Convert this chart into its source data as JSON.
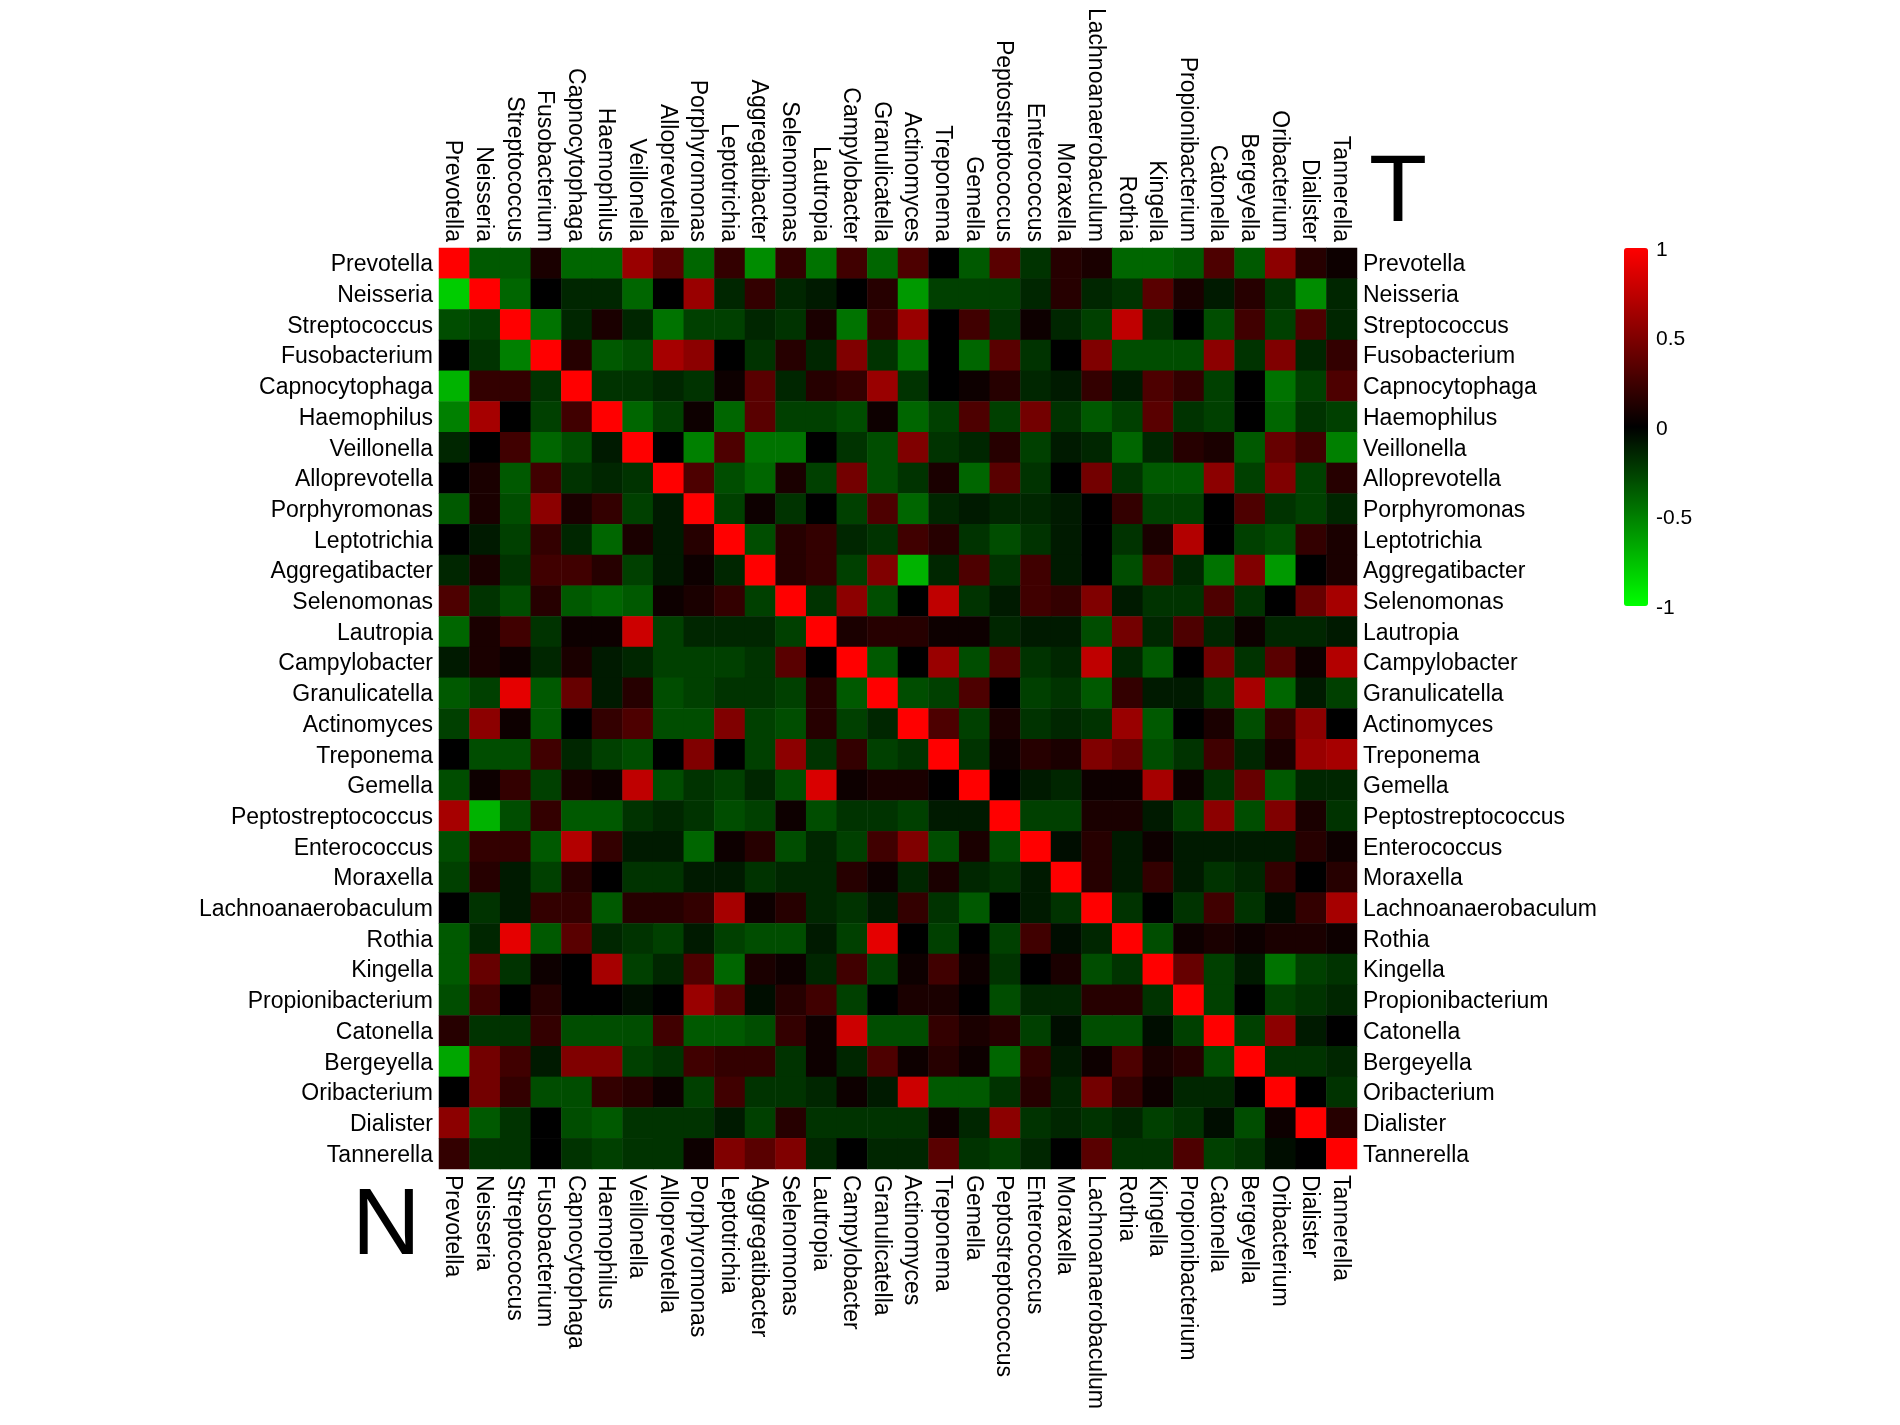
{
  "chart_data": {
    "type": "heatmap",
    "categories": [
      "Prevotella",
      "Neisseria",
      "Streptococcus",
      "Fusobacterium",
      "Capnocytophaga",
      "Haemophilus",
      "Veillonella",
      "Alloprevotella",
      "Porphyromonas",
      "Leptotrichia",
      "Aggregatibacter",
      "Selenomonas",
      "Lautropia",
      "Campylobacter",
      "Granulicatella",
      "Actinomyces",
      "Treponema",
      "Gemella",
      "Peptostreptococcus",
      "Enterococcus",
      "Moraxella",
      "Lachnoanaerobaculum",
      "Rothia",
      "Kingella",
      "Propionibacterium",
      "Catonella",
      "Bergeyella",
      "Oribacterium",
      "Dialister",
      "Tannerella"
    ],
    "y_categories": [
      "Prevotella",
      "Neisseria",
      "Streptococcus",
      "Fusobacterium",
      "Capnocytophaga",
      "Haemophilus",
      "Veillonella",
      "Alloprevotella",
      "Porphyromonas",
      "Leptotrichia",
      "Aggregatibacter",
      "Selenomonas",
      "Lautropia",
      "Campylobacter",
      "Granulicatella",
      "Actinomyces",
      "Treponema",
      "Gemella",
      "Peptostreptococcus",
      "Enterococcus",
      "Moraxella",
      "Lachnoanaerobaculum",
      "Rothia",
      "Kingella",
      "Propionibacterium",
      "Catonella",
      "Bergeyella",
      "Oribacterium",
      "Dialister",
      "Tannerella"
    ],
    "y2_categories": [
      "Prevotella",
      "Neisseria",
      "Streptococcus",
      "Fusobacterium",
      "Capnocytophaga",
      "Haemophilus",
      "Veillonella",
      "Alloprevotella",
      "Porphyromonas",
      "Leptotrichia",
      "Aggregatibacter",
      "Selenomonas",
      "Lautropia",
      "Campylobacter",
      "Granulicatella",
      "Actinomyces",
      "Treponema",
      "Gemella",
      "Peptostreptococcus",
      "Enterococcus",
      "Moraxella",
      "Lachnoanaerobaculum",
      "Rothia",
      "Kingella",
      "Propionibacterium",
      "Catonella",
      "Bergeyella",
      "Oribacterium",
      "Dialister",
      "Tannerella"
    ],
    "cells": [
      [
        1,
        -0.35,
        -0.35,
        0.1,
        -0.4,
        -0.4,
        0.6,
        0.35,
        -0.4,
        0.2,
        -0.55,
        0.2,
        -0.45,
        0.25,
        -0.4,
        0.3,
        0,
        -0.35,
        0.35,
        -0.2,
        0.15,
        0.1,
        -0.4,
        -0.4,
        -0.35,
        0.3,
        -0.35,
        0.55,
        0.15,
        0.05
      ],
      [
        -0.8,
        1,
        -0.4,
        0,
        -0.15,
        -0.15,
        -0.4,
        0,
        0.6,
        -0.15,
        0.2,
        -0.15,
        -0.1,
        0,
        0.15,
        -0.6,
        -0.25,
        -0.25,
        -0.25,
        -0.15,
        0.15,
        -0.15,
        -0.2,
        0.35,
        0.1,
        -0.1,
        0.15,
        -0.2,
        -0.55,
        -0.15
      ],
      [
        -0.3,
        -0.25,
        1,
        -0.45,
        -0.15,
        0.1,
        -0.15,
        -0.45,
        -0.25,
        -0.25,
        -0.15,
        -0.2,
        0.1,
        -0.45,
        0.2,
        0.6,
        0,
        0.25,
        -0.2,
        0.05,
        -0.15,
        -0.25,
        0.75,
        -0.2,
        0,
        -0.3,
        0.25,
        -0.25,
        0.3,
        -0.15
      ],
      [
        0,
        -0.2,
        -0.5,
        1,
        0.15,
        -0.35,
        -0.3,
        0.65,
        0.55,
        0,
        -0.2,
        0.15,
        -0.15,
        0.5,
        -0.2,
        -0.45,
        0,
        -0.4,
        0.35,
        -0.2,
        0,
        0.5,
        -0.3,
        -0.3,
        -0.3,
        0.55,
        -0.2,
        0.5,
        -0.15,
        0.2
      ],
      [
        -0.7,
        0.2,
        0.2,
        -0.2,
        1,
        -0.2,
        -0.2,
        -0.15,
        -0.2,
        0.05,
        0.35,
        -0.15,
        0.15,
        0.2,
        0.6,
        -0.2,
        0,
        0.05,
        0.15,
        -0.15,
        -0.1,
        0.2,
        -0.1,
        0.3,
        0.2,
        -0.25,
        0,
        -0.45,
        -0.25,
        0.3
      ],
      [
        -0.5,
        0.65,
        0,
        -0.25,
        0.25,
        1,
        -0.4,
        -0.25,
        0.05,
        -0.4,
        0.35,
        -0.25,
        -0.25,
        -0.3,
        0.05,
        -0.4,
        -0.25,
        0.3,
        -0.25,
        0.45,
        -0.2,
        -0.35,
        -0.25,
        0.35,
        -0.2,
        -0.25,
        0,
        -0.4,
        -0.2,
        -0.25
      ],
      [
        -0.15,
        0,
        0.25,
        -0.4,
        -0.3,
        -0.1,
        1,
        0,
        -0.5,
        0.3,
        -0.45,
        -0.45,
        0,
        -0.2,
        -0.3,
        0.5,
        -0.2,
        -0.15,
        0.15,
        -0.25,
        -0.1,
        -0.15,
        -0.4,
        -0.15,
        0.15,
        0.1,
        -0.35,
        0.4,
        0.25,
        -0.5
      ],
      [
        0,
        0.1,
        -0.35,
        0.25,
        -0.2,
        -0.15,
        -0.2,
        1,
        0.3,
        -0.3,
        -0.4,
        0.1,
        -0.25,
        0.45,
        -0.3,
        -0.2,
        0.1,
        -0.4,
        0.35,
        -0.2,
        0,
        0.45,
        -0.2,
        -0.35,
        -0.35,
        0.55,
        -0.25,
        0.5,
        -0.25,
        0.15
      ],
      [
        -0.35,
        0.1,
        -0.3,
        0.55,
        0.1,
        0.2,
        -0.25,
        -0.1,
        1,
        -0.25,
        0.05,
        -0.2,
        0,
        -0.25,
        0.3,
        -0.4,
        -0.15,
        -0.1,
        -0.15,
        -0.15,
        -0.1,
        0,
        0.2,
        -0.25,
        -0.25,
        0,
        0.3,
        -0.2,
        -0.25,
        -0.15
      ],
      [
        0,
        -0.1,
        -0.25,
        0.2,
        -0.15,
        -0.4,
        0.1,
        -0.1,
        0.15,
        1,
        -0.3,
        0.15,
        0.2,
        -0.15,
        -0.2,
        0.25,
        0.15,
        -0.2,
        -0.3,
        -0.2,
        -0.1,
        0,
        -0.2,
        0.1,
        0.7,
        0,
        -0.25,
        -0.3,
        0.2,
        0.1
      ],
      [
        -0.15,
        0.1,
        -0.2,
        0.25,
        0.25,
        0.15,
        -0.25,
        -0.1,
        0.05,
        -0.15,
        1,
        0.15,
        0.2,
        -0.25,
        0.5,
        -0.7,
        -0.15,
        0.3,
        -0.2,
        0.25,
        -0.1,
        0,
        -0.3,
        0.35,
        -0.15,
        -0.45,
        0.5,
        -0.6,
        0,
        0.1
      ],
      [
        0.3,
        -0.2,
        -0.3,
        0.15,
        -0.35,
        -0.4,
        -0.35,
        0.05,
        0.1,
        0.2,
        -0.25,
        1,
        -0.2,
        0.55,
        -0.3,
        0,
        0.75,
        -0.2,
        -0.1,
        0.25,
        0.2,
        0.5,
        -0.1,
        -0.2,
        -0.2,
        0.3,
        -0.2,
        0,
        0.4,
        0.65
      ],
      [
        -0.4,
        0.1,
        0.25,
        -0.2,
        0.05,
        0.05,
        0.8,
        -0.25,
        -0.15,
        -0.15,
        -0.15,
        -0.25,
        1,
        0.1,
        0.15,
        0.15,
        0.05,
        0.05,
        -0.15,
        -0.1,
        -0.1,
        -0.3,
        0.45,
        -0.15,
        0.3,
        -0.15,
        0.05,
        -0.15,
        -0.15,
        -0.1
      ],
      [
        -0.1,
        0.1,
        0.05,
        -0.15,
        0.1,
        -0.1,
        -0.15,
        -0.25,
        -0.25,
        -0.25,
        -0.2,
        0.35,
        0,
        1,
        -0.35,
        0,
        0.6,
        -0.3,
        0.35,
        -0.2,
        -0.15,
        0.75,
        -0.15,
        -0.35,
        0,
        0.45,
        -0.2,
        0.35,
        0.05,
        0.7
      ],
      [
        -0.35,
        -0.25,
        0.9,
        -0.35,
        0.4,
        -0.1,
        0.15,
        -0.3,
        -0.25,
        -0.2,
        -0.2,
        -0.25,
        0.15,
        -0.35,
        1,
        -0.3,
        -0.25,
        0.3,
        0,
        -0.25,
        -0.2,
        -0.35,
        0.2,
        -0.1,
        -0.1,
        -0.25,
        0.65,
        -0.4,
        -0.1,
        -0.25
      ],
      [
        -0.25,
        0.55,
        0.05,
        -0.35,
        0,
        0.2,
        0.3,
        -0.3,
        -0.3,
        0.5,
        -0.25,
        -0.3,
        0.15,
        -0.25,
        -0.15,
        1,
        0.3,
        -0.25,
        0.1,
        -0.2,
        -0.15,
        -0.2,
        0.6,
        -0.35,
        0,
        0.1,
        -0.3,
        0.2,
        0.55,
        0
      ],
      [
        0,
        -0.3,
        -0.3,
        0.25,
        -0.15,
        -0.25,
        -0.3,
        0,
        0.5,
        0,
        -0.25,
        0.55,
        -0.2,
        0.2,
        -0.25,
        -0.2,
        1,
        -0.2,
        0.05,
        0.15,
        0.1,
        0.5,
        0.4,
        -0.3,
        -0.2,
        0.25,
        -0.15,
        0.1,
        0.6,
        0.65
      ],
      [
        -0.3,
        0.05,
        0.2,
        -0.25,
        0.1,
        0.05,
        0.75,
        -0.3,
        -0.2,
        -0.25,
        -0.15,
        -0.3,
        0.85,
        0.05,
        0.1,
        0.1,
        0,
        1,
        0,
        -0.1,
        -0.15,
        0.05,
        0.05,
        0.65,
        0.05,
        -0.2,
        0.4,
        -0.35,
        -0.15,
        -0.15
      ],
      [
        0.65,
        -0.7,
        -0.3,
        0.2,
        -0.35,
        -0.35,
        -0.2,
        -0.15,
        -0.2,
        -0.3,
        -0.25,
        0.05,
        -0.3,
        -0.2,
        -0.2,
        -0.25,
        -0.1,
        -0.1,
        1,
        -0.25,
        -0.25,
        0.1,
        0.1,
        -0.1,
        -0.25,
        0.55,
        -0.3,
        0.5,
        0.1,
        -0.2
      ],
      [
        -0.3,
        0.2,
        0.2,
        -0.35,
        0.7,
        0.2,
        -0.1,
        -0.1,
        -0.4,
        0.05,
        0.15,
        -0.3,
        -0.15,
        -0.25,
        0.25,
        0.5,
        -0.3,
        0.1,
        -0.3,
        1,
        -0.05,
        0.15,
        -0.1,
        0.05,
        -0.1,
        -0.1,
        -0.1,
        -0.1,
        0.15,
        0.05
      ],
      [
        -0.25,
        0.15,
        -0.1,
        -0.25,
        0.15,
        0,
        -0.2,
        -0.2,
        -0.1,
        -0.1,
        -0.2,
        -0.15,
        -0.15,
        0.15,
        0.05,
        -0.15,
        0.1,
        -0.15,
        -0.2,
        -0.1,
        1,
        0.15,
        -0.1,
        0.2,
        -0.1,
        -0.2,
        -0.15,
        0.2,
        0,
        0.15
      ],
      [
        0,
        -0.2,
        -0.1,
        0.2,
        0.2,
        -0.35,
        0.15,
        0.15,
        0.2,
        0.65,
        0.05,
        0.15,
        -0.15,
        -0.2,
        -0.1,
        0.2,
        -0.2,
        -0.35,
        0,
        -0.1,
        -0.2,
        1,
        -0.2,
        0,
        -0.2,
        0.25,
        -0.2,
        -0.05,
        0.2,
        0.65
      ],
      [
        -0.35,
        -0.15,
        0.9,
        -0.35,
        0.35,
        -0.15,
        -0.2,
        -0.25,
        -0.1,
        -0.25,
        -0.3,
        -0.3,
        -0.1,
        -0.25,
        0.9,
        0,
        -0.25,
        0,
        -0.25,
        0.25,
        -0.05,
        -0.15,
        1,
        -0.3,
        0.05,
        0.1,
        0.05,
        0.1,
        0.1,
        0.05
      ],
      [
        -0.35,
        0.4,
        -0.2,
        0.05,
        0,
        0.65,
        -0.25,
        -0.15,
        0.3,
        -0.4,
        0.1,
        0.05,
        -0.15,
        0.25,
        -0.25,
        0.05,
        0.25,
        0.05,
        -0.2,
        0,
        0.1,
        -0.3,
        -0.2,
        1,
        0.4,
        -0.25,
        -0.1,
        -0.45,
        -0.25,
        -0.2
      ],
      [
        -0.3,
        0.25,
        0,
        0.15,
        0,
        0,
        -0.05,
        0,
        0.6,
        0.35,
        -0.05,
        0.15,
        0.25,
        -0.25,
        0,
        0.1,
        0.1,
        0,
        -0.3,
        -0.15,
        -0.15,
        0.15,
        0.15,
        -0.2,
        1,
        -0.25,
        0,
        -0.25,
        -0.2,
        -0.15
      ],
      [
        0.15,
        -0.2,
        -0.2,
        0.2,
        -0.3,
        -0.3,
        -0.3,
        0.25,
        -0.35,
        -0.35,
        -0.3,
        0.2,
        0.05,
        0.8,
        -0.3,
        -0.3,
        0.2,
        0.1,
        0.15,
        -0.25,
        -0.05,
        -0.3,
        -0.3,
        -0.05,
        -0.25,
        1,
        -0.25,
        0.55,
        -0.1,
        0
      ],
      [
        -0.65,
        0.45,
        0.25,
        -0.1,
        0.5,
        0.5,
        -0.25,
        -0.2,
        0.25,
        0.2,
        0.2,
        -0.2,
        0.05,
        -0.15,
        0.3,
        0.05,
        0.15,
        0.05,
        -0.4,
        0.2,
        -0.1,
        0.05,
        0.3,
        0.1,
        0.15,
        -0.3,
        1,
        -0.2,
        -0.2,
        -0.15
      ],
      [
        0,
        0.45,
        0.2,
        -0.3,
        -0.3,
        0.2,
        0.15,
        0.05,
        -0.25,
        0.25,
        -0.2,
        -0.2,
        -0.15,
        0.05,
        -0.1,
        0.8,
        -0.35,
        -0.35,
        -0.2,
        0.15,
        -0.15,
        0.45,
        0.2,
        0.05,
        -0.15,
        -0.15,
        0,
        1,
        0,
        -0.2
      ],
      [
        0.55,
        -0.35,
        -0.2,
        0,
        -0.3,
        -0.35,
        -0.2,
        -0.2,
        -0.2,
        -0.1,
        -0.25,
        0.15,
        -0.2,
        -0.2,
        -0.2,
        -0.2,
        0.05,
        -0.15,
        0.55,
        -0.2,
        -0.15,
        -0.2,
        -0.15,
        -0.25,
        -0.2,
        -0.05,
        -0.3,
        0.05,
        1,
        0.15
      ],
      [
        0.2,
        -0.2,
        -0.2,
        0,
        -0.2,
        -0.25,
        -0.2,
        -0.2,
        0.05,
        0.5,
        0.35,
        0.5,
        -0.15,
        0,
        -0.15,
        -0.15,
        0.35,
        -0.2,
        -0.25,
        -0.15,
        0,
        0.35,
        -0.2,
        -0.2,
        0.3,
        -0.25,
        -0.2,
        -0.05,
        0,
        1
      ]
    ],
    "clim": [
      -1,
      1
    ],
    "cticks": [
      1,
      0.5,
      0,
      -0.5,
      -1
    ],
    "annotations": [
      "T",
      "N"
    ]
  }
}
